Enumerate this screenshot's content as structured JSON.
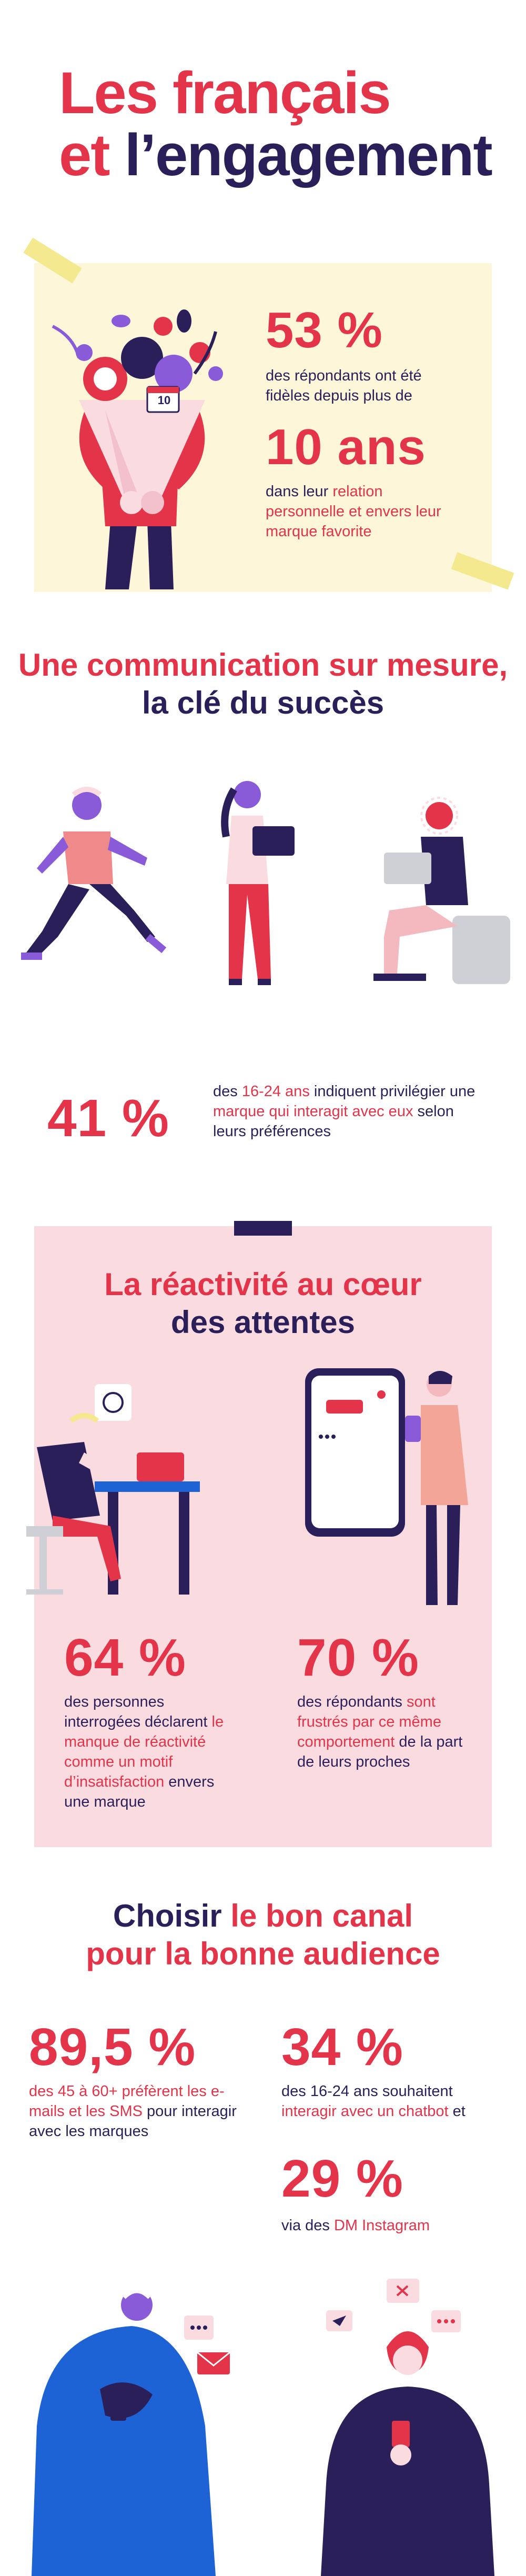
{
  "header": {
    "title_line1": "Les français",
    "title_line2_part1": "et",
    "title_line2_part2": "l’engagement"
  },
  "section1": {
    "stat1_value": "53 %",
    "stat1_text": "des répondants ont été fidèles depuis plus de",
    "stat2_value": "10 ans",
    "stat2_text_highlight": "dans leur",
    "stat2_text_rest": "relation personnelle et envers leur marque favorite",
    "badge_text": "10"
  },
  "section2": {
    "title_line1": "Une communication sur mesure,",
    "title_line2": "la clé du succès",
    "stat_value": "41 %",
    "stat_text_part1": "des",
    "stat_text_highlight1": "16-24 ans",
    "stat_text_part2": "indiquent privilégier",
    "stat_text_part3": "une",
    "stat_text_highlight2": "marque qui interagit avec eux",
    "stat_text_part4": "selon leurs préférences"
  },
  "section3": {
    "title_line1": "La réactivité au cœur",
    "title_line2": "des attentes",
    "stat1_value": "64 %",
    "stat1_text_part1": "des personnes interrogées déclarent",
    "stat1_text_highlight": "le manque de réactivité comme un motif d’insatisfaction",
    "stat1_text_part2": "envers une marque",
    "stat2_value": "70 %",
    "stat2_text_part1": "des répondants",
    "stat2_text_highlight": "sont frustrés par ce même comportement",
    "stat2_text_part2": "de la part de leurs proches"
  },
  "section4": {
    "title_part1": "Choisir",
    "title_highlight": "le bon canal",
    "title_line2": "pour la bonne audience",
    "stat1_value": "89,5 %",
    "stat1_text_highlight": "des 45 à 60+ préfèrent les e-mails et les SMS",
    "stat1_text_rest": "pour interagir avec les marques",
    "stat2_value": "34 %",
    "stat2_text_part1": "des 16-24 ans souhaitent",
    "stat2_text_highlight": "interagir avec un chatbot",
    "stat2_text_part2": "et",
    "stat3_value": "29 %",
    "stat3_text_part1": "via des",
    "stat3_text_highlight": "DM Instagram"
  },
  "colors": {
    "red": "#e3344a",
    "navy": "#2b1f5a",
    "cream": "#fdf6d9",
    "pink": "#fadbe0",
    "yellow": "#f5e98f",
    "purple": "#8a5bd8",
    "blue": "#1d63d6"
  }
}
